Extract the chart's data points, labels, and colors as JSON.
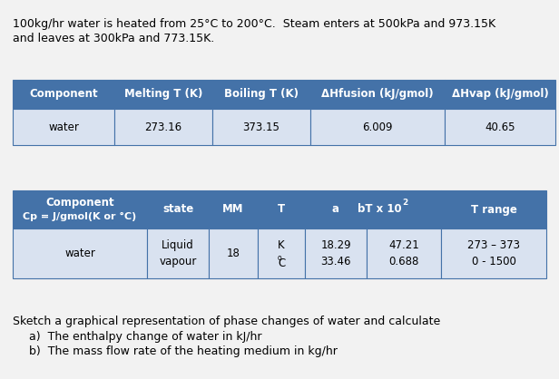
{
  "header_line1": "100kg/hr water is heated from 25°C to 200°C.  Steam enters at 500kPa and 973.15K",
  "header_line2": "and leaves at 300kPa and 773.15K.",
  "table1_header": [
    "Component",
    "Melting T (K)",
    "Boiling T (K)",
    "ΔHfusion (kJ/gmol)",
    "ΔHvap (kJ/gmol)"
  ],
  "table1_row": [
    "water",
    "273.16",
    "373.15",
    "6.009",
    "40.65"
  ],
  "table2_header_col1_line1": "Component",
  "table2_header_col1_line2": "Cp = J/gmol(K or °C)",
  "table2_headers": [
    "state",
    "MM",
    "T",
    "a",
    "bT x 10",
    "T range"
  ],
  "table2_bT_exp": "2",
  "table2_row_col1": "water",
  "table2_states": [
    "Liquid",
    "vapour"
  ],
  "table2_MM": "18",
  "table2_T_line1": "K",
  "table2_T_line2": "°C",
  "table2_a": [
    "18.29",
    "33.46"
  ],
  "table2_bT": [
    "47.21",
    "0.688"
  ],
  "table2_Trange": [
    "273 – 373",
    "0 - 1500"
  ],
  "footer_text": "Sketch a graphical representation of phase changes of water and calculate",
  "footer_a": "The enthalpy change of water in kJ/hr",
  "footer_b": "The mass flow rate of the heating medium in kg/hr",
  "header_bg": "#4472a8",
  "header_fg": "#ffffff",
  "row_bg": "#d9e2f0",
  "border_color": "#4472a8",
  "bg_color": "#f2f2f2",
  "font_size": 8.5,
  "title_font_size": 9.0
}
